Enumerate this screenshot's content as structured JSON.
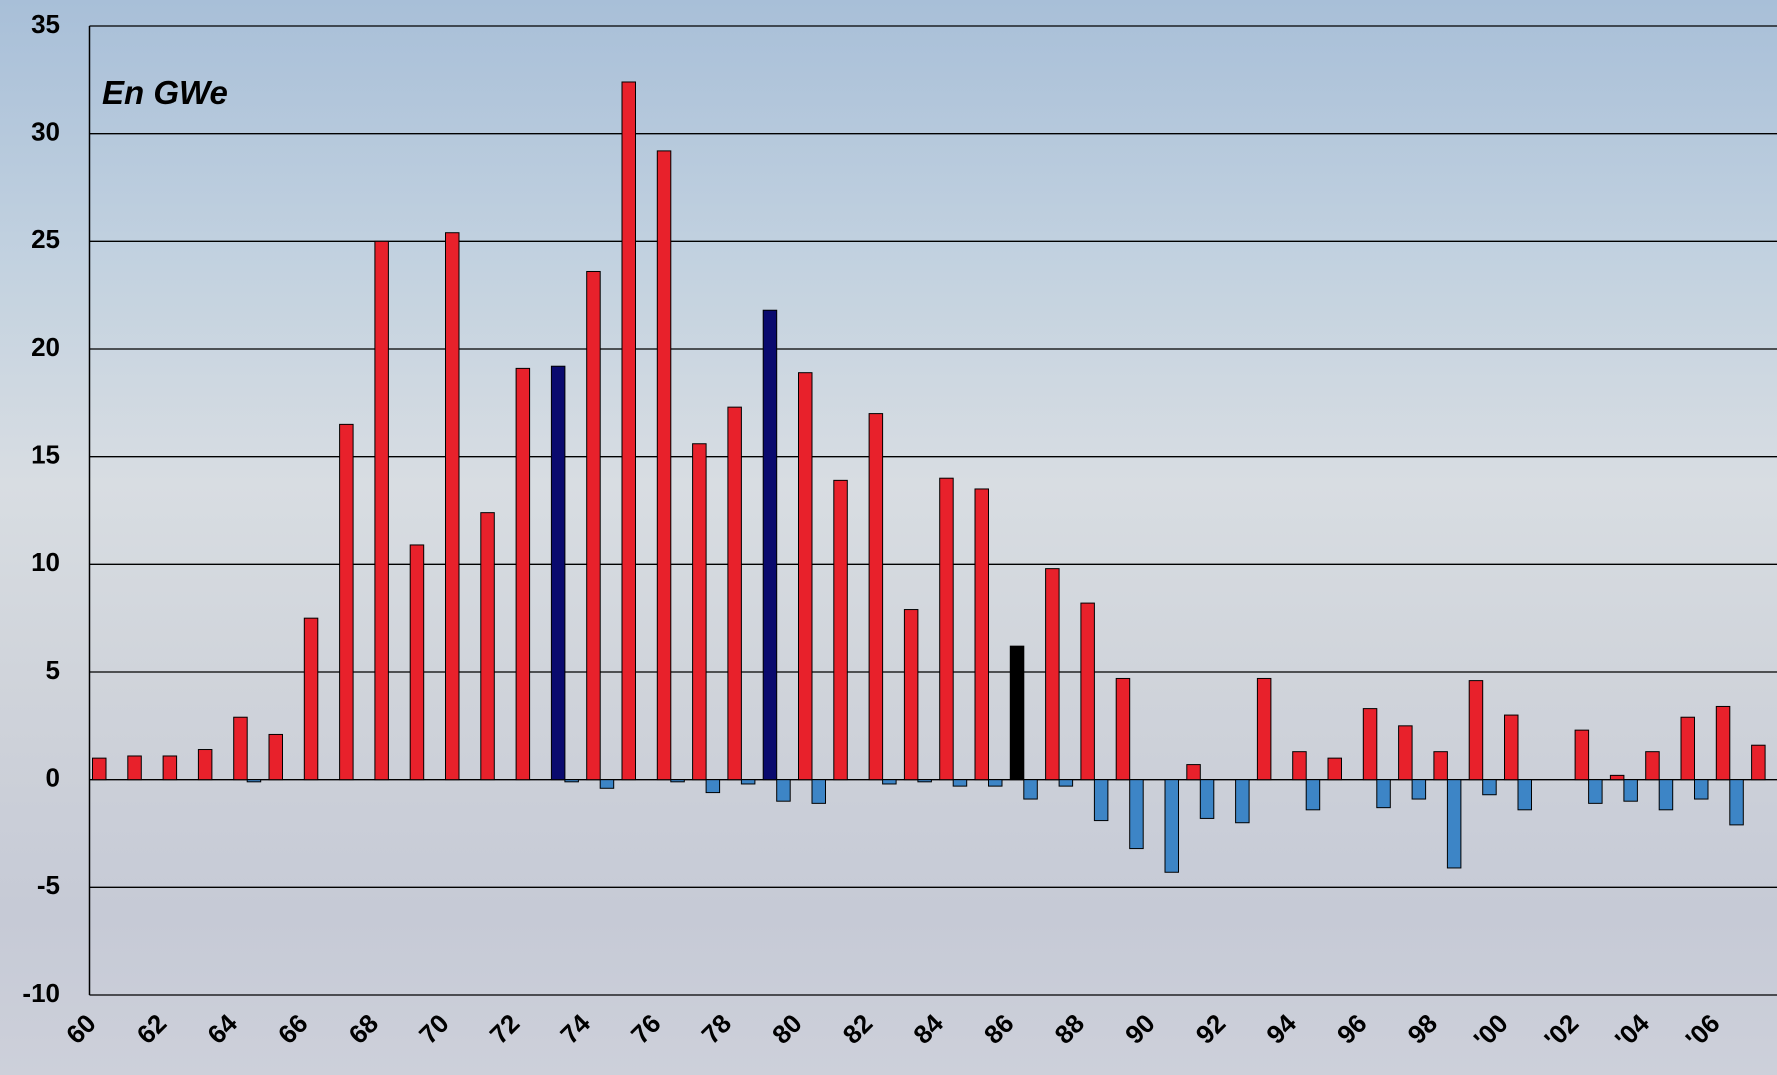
{
  "chart_data": {
    "type": "bar",
    "title": "En GWe",
    "categories": [
      "60",
      null,
      "62",
      null,
      "64",
      null,
      "66",
      null,
      "68",
      null,
      "70",
      null,
      "72",
      null,
      "74",
      null,
      "76",
      null,
      "78",
      null,
      "80",
      null,
      "82",
      null,
      "84",
      null,
      "86",
      null,
      "88",
      null,
      "90",
      null,
      "92",
      null,
      "94",
      null,
      "96",
      null,
      "98",
      null,
      "'00",
      null,
      "'02",
      null,
      "'04",
      null,
      "'06",
      null
    ],
    "series": [
      {
        "color": "#e8212b",
        "colors": [
          "#e8212b",
          "#e8212b",
          "#e8212b",
          "#e8212b",
          "#e8212b",
          "#e8212b",
          "#e8212b",
          "#e8212b",
          "#e8212b",
          "#e8212b",
          "#e8212b",
          "#e8212b",
          "#e8212b",
          "#0a0a6e",
          "#e8212b",
          "#e8212b",
          "#e8212b",
          "#e8212b",
          "#e8212b",
          "#0a0a6e",
          "#e8212b",
          "#e8212b",
          "#e8212b",
          "#e8212b",
          "#e8212b",
          "#e8212b",
          "#000000",
          "#e8212b",
          "#e8212b",
          "#e8212b",
          "#e8212b",
          "#e8212b",
          "#e8212b",
          "#e8212b",
          "#e8212b",
          "#e8212b",
          "#e8212b",
          "#e8212b",
          "#e8212b",
          "#e8212b",
          "#e8212b",
          "#e8212b",
          "#e8212b",
          "#e8212b",
          "#e8212b",
          "#e8212b",
          "#e8212b",
          "#e8212b"
        ],
        "values": [
          1.0,
          1.1,
          1.1,
          1.4,
          2.9,
          2.1,
          7.5,
          16.5,
          25,
          10.9,
          25.4,
          12.4,
          19.1,
          19.2,
          23.6,
          32.4,
          29.2,
          15.6,
          17.3,
          21.8,
          18.9,
          13.9,
          17.0,
          7.9,
          14.0,
          13.5,
          6.2,
          9.8,
          8.2,
          4.7,
          0,
          0.7,
          0,
          4.7,
          1.3,
          1.0,
          3.3,
          2.5,
          1.3,
          4.6,
          3.0,
          0,
          2.3,
          0.2,
          1.3,
          2.9,
          3.4,
          1.6
        ]
      },
      {
        "color": "#3d85c6",
        "values": [
          0,
          0,
          0,
          0,
          -0.1,
          0,
          0,
          0,
          0,
          0,
          0,
          0,
          0,
          -0.1,
          -0.4,
          0,
          -0.1,
          -0.6,
          -0.2,
          -1.0,
          -1.1,
          0,
          -0.2,
          -0.1,
          -0.3,
          -0.3,
          -0.9,
          -0.3,
          -1.9,
          -3.2,
          -4.3,
          -1.8,
          -2.0,
          0,
          -1.4,
          0,
          -1.3,
          -0.9,
          -4.1,
          -0.7,
          -1.4,
          0,
          -1.1,
          -1.0,
          -1.4,
          -0.9,
          -2.1,
          0
        ]
      }
    ],
    "ylim": [
      -10,
      35
    ],
    "yticks": [
      -10,
      -5,
      0,
      5,
      10,
      15,
      20,
      25,
      30,
      35
    ],
    "grid": true
  }
}
